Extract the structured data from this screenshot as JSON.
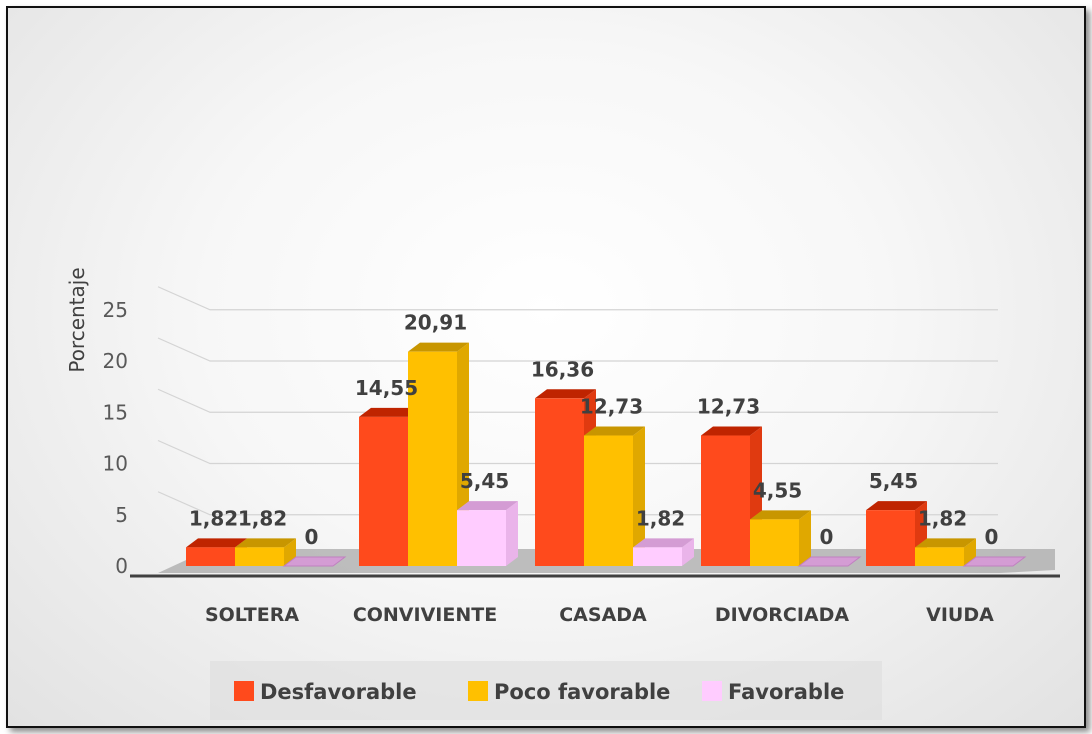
{
  "chart_data": {
    "type": "bar",
    "ylabel": "Porcentaje",
    "ylim": [
      0,
      25
    ],
    "yticks": [
      "0",
      "5",
      "10",
      "15",
      "20",
      "25"
    ],
    "grid": true,
    "legend_position": "bottom",
    "categories": [
      "SOLTERA",
      "CONVIVIENTE",
      "CASADA",
      "DIVORCIADA",
      "VIUDA"
    ],
    "series": [
      {
        "name": "Desfavorable",
        "color": "#FF4A1C",
        "values": [
          1.82,
          14.55,
          16.36,
          12.73,
          5.45
        ],
        "labels": [
          "1,82",
          "14,55",
          "16,36",
          "12,73",
          "5,45"
        ]
      },
      {
        "name": "Poco favorable",
        "color": "#FFC000",
        "values": [
          1.82,
          20.91,
          12.73,
          4.55,
          1.82
        ],
        "labels": [
          "1,82",
          "20,91",
          "12,73",
          "4,55",
          "1,82"
        ]
      },
      {
        "name": "Favorable",
        "color": "#FFCCFF",
        "values": [
          0,
          5.45,
          1.82,
          0,
          0
        ],
        "labels": [
          "0",
          "5,45",
          "1,82",
          "0",
          "0"
        ]
      }
    ]
  }
}
